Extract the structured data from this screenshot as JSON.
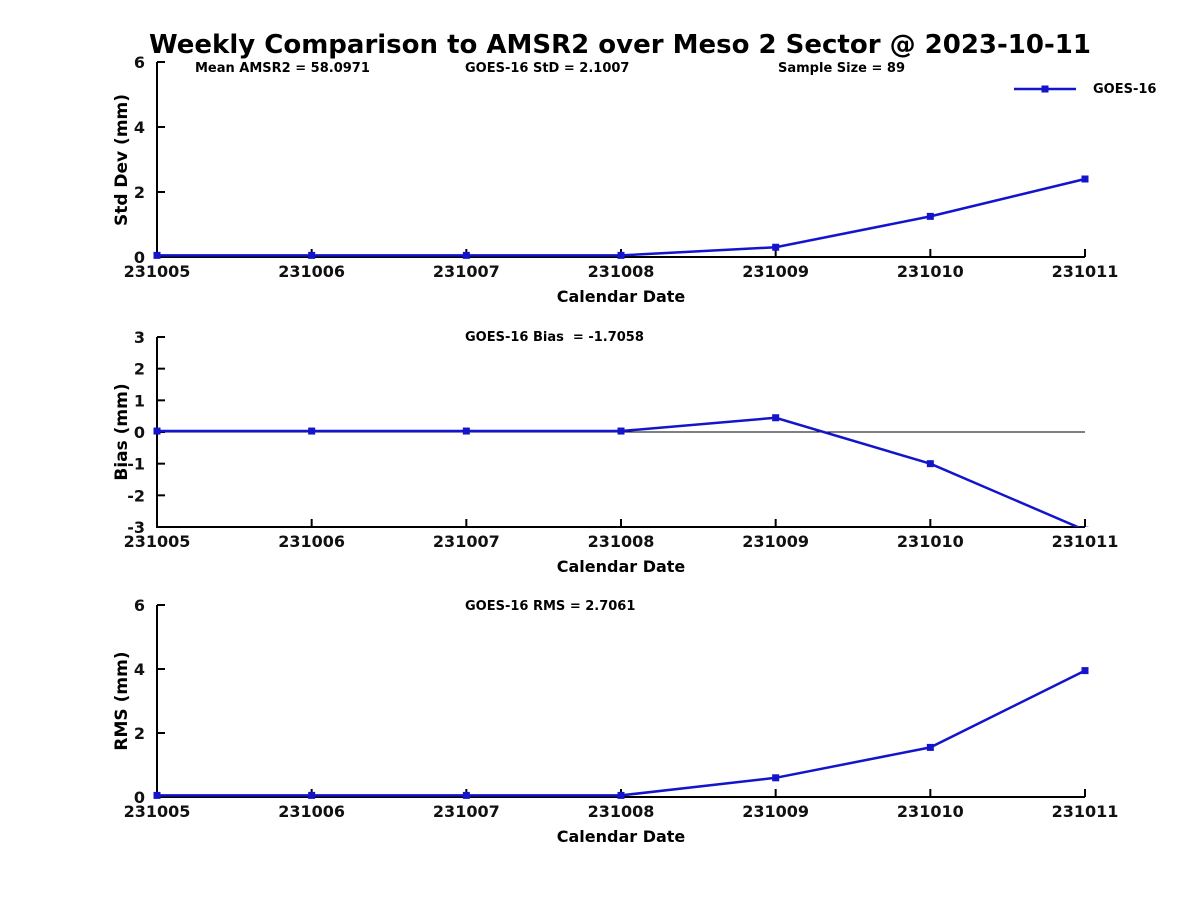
{
  "figure": {
    "title": "Weekly Comparison to AMSR2 over Meso 2 Sector @ 2023-10-11",
    "background": "#ffffff",
    "line_color": "#1414CC",
    "axis_color": "#000000",
    "legend": {
      "label": "GOES-16",
      "position": "top-right"
    }
  },
  "chart_data": [
    {
      "type": "line",
      "name": "stddev",
      "annotations": [
        "Mean AMSR2 = 58.0971",
        "GOES-16 StD = 2.1007",
        "Sample Size = 89"
      ],
      "categories": [
        "231005",
        "231006",
        "231007",
        "231008",
        "231009",
        "231010",
        "231011"
      ],
      "series": [
        {
          "name": "GOES-16",
          "values": [
            0.05,
            0.05,
            0.05,
            0.05,
            0.3,
            1.25,
            2.4
          ]
        }
      ],
      "xlabel": "Calendar Date",
      "ylabel": "Std Dev (mm)",
      "ylim": [
        0,
        6
      ],
      "yticks": [
        0,
        2,
        4,
        6
      ],
      "grid": false,
      "zero_line": false,
      "clip_at_axis": false
    },
    {
      "type": "line",
      "name": "bias",
      "annotations": [
        "GOES-16 Bias  = -1.7058"
      ],
      "categories": [
        "231005",
        "231006",
        "231007",
        "231008",
        "231009",
        "231010",
        "231011"
      ],
      "series": [
        {
          "name": "GOES-16",
          "values": [
            0.03,
            0.03,
            0.03,
            0.03,
            0.45,
            -1.0,
            -3.1
          ]
        }
      ],
      "xlabel": "Calendar Date",
      "ylabel": "Bias (mm)",
      "ylim": [
        -3,
        3
      ],
      "yticks": [
        -3,
        -2,
        -1,
        0,
        1,
        2,
        3
      ],
      "grid": false,
      "zero_line": true,
      "clip_at_axis": true,
      "note": "last point extends below axis and is clipped at -3"
    },
    {
      "type": "line",
      "name": "rms",
      "annotations": [
        "GOES-16 RMS = 2.7061"
      ],
      "categories": [
        "231005",
        "231006",
        "231007",
        "231008",
        "231009",
        "231010",
        "231011"
      ],
      "series": [
        {
          "name": "GOES-16",
          "values": [
            0.05,
            0.05,
            0.05,
            0.05,
            0.6,
            1.55,
            3.95
          ]
        }
      ],
      "xlabel": "Calendar Date",
      "ylabel": "RMS (mm)",
      "ylim": [
        0,
        6
      ],
      "yticks": [
        0,
        2,
        4,
        6
      ],
      "grid": false,
      "zero_line": false,
      "clip_at_axis": false
    }
  ]
}
